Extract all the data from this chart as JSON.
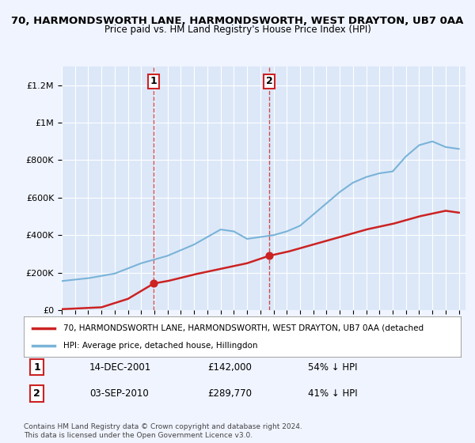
{
  "title": "70, HARMONDSWORTH LANE, HARMONDSWORTH, WEST DRAYTON, UB7 0AA",
  "subtitle": "Price paid vs. HM Land Registry's House Price Index (HPI)",
  "background_color": "#f0f4ff",
  "plot_bg_color": "#dce8f8",
  "xlabel": "",
  "ylabel": "",
  "ylim": [
    0,
    1300000
  ],
  "yticks": [
    0,
    200000,
    400000,
    600000,
    800000,
    1000000,
    1200000
  ],
  "ytick_labels": [
    "£0",
    "£200K",
    "£400K",
    "£600K",
    "£800K",
    "£1M",
    "£1.2M"
  ],
  "transaction1": {
    "date_idx": 6.95,
    "value": 142000,
    "label": "1",
    "year": 2001.95
  },
  "transaction2": {
    "date_idx": 15.67,
    "value": 289770,
    "label": "2",
    "year": 2010.67
  },
  "legend_entry1": "70, HARMONDSWORTH LANE, HARMONDSWORTH, WEST DRAYTON, UB7 0AA (detached",
  "legend_entry2": "HPI: Average price, detached house, Hillingdon",
  "table_rows": [
    {
      "num": "1",
      "date": "14-DEC-2001",
      "price": "£142,000",
      "pct": "54% ↓ HPI"
    },
    {
      "num": "2",
      "date": "03-SEP-2010",
      "price": "£289,770",
      "pct": "41% ↓ HPI"
    }
  ],
  "footnote1": "Contains HM Land Registry data © Crown copyright and database right 2024.",
  "footnote2": "This data is licensed under the Open Government Licence v3.0.",
  "hpi_color": "#7ab3d8",
  "price_color": "#cc2222",
  "vline_color": "#cc2222",
  "start_year": 1995,
  "end_year": 2025
}
